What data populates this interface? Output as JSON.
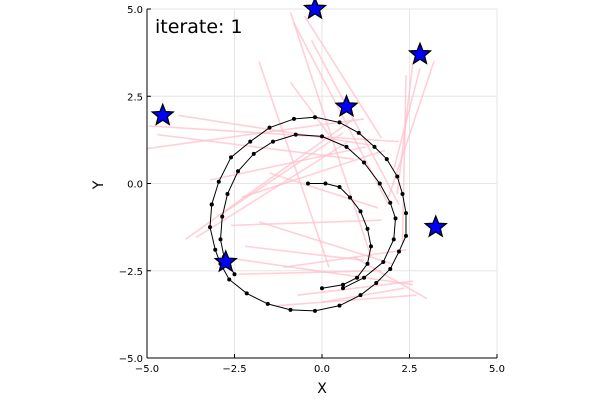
{
  "chart_data": {
    "type": "scatter",
    "annotation": "iterate: 1",
    "xlabel": "X",
    "ylabel": "Y",
    "xlim": [
      -5,
      5
    ],
    "ylim": [
      -5,
      5
    ],
    "x_ticks": [
      -5.0,
      -2.5,
      0.0,
      2.5,
      5.0
    ],
    "y_ticks": [
      -5.0,
      -2.5,
      0.0,
      2.5,
      5.0
    ],
    "x_tick_labels": [
      "−5.0",
      "−2.5",
      "0.0",
      "2.5",
      "5.0"
    ],
    "y_tick_labels": [
      "−5.0",
      "−2.5",
      "0.0",
      "2.5",
      "5.0"
    ],
    "grid": true,
    "legend": "none",
    "colors": {
      "path": "#000000",
      "beams": "#ffc0cb",
      "stars": "#0000ff",
      "grid": "#e6e6e6"
    },
    "path": [
      [
        -0.4,
        0.0
      ],
      [
        0.1,
        0.0
      ],
      [
        0.5,
        -0.1
      ],
      [
        0.8,
        -0.4
      ],
      [
        1.1,
        -0.8
      ],
      [
        1.3,
        -1.3
      ],
      [
        1.4,
        -1.8
      ],
      [
        1.3,
        -2.3
      ],
      [
        1.0,
        -2.7
      ],
      [
        0.6,
        -2.9
      ],
      [
        0.0,
        -3.0
      ]
    ],
    "path_outer": [
      [
        -3.15,
        -0.6
      ],
      [
        -3.2,
        -1.25
      ],
      [
        -3.05,
        -1.9
      ],
      [
        -2.9,
        -2.3
      ],
      [
        -2.65,
        -2.75
      ],
      [
        -2.15,
        -3.15
      ],
      [
        -1.55,
        -3.45
      ],
      [
        -0.9,
        -3.62
      ],
      [
        -0.2,
        -3.65
      ],
      [
        0.5,
        -3.5
      ],
      [
        1.1,
        -3.2
      ],
      [
        1.55,
        -2.85
      ],
      [
        1.95,
        -2.45
      ],
      [
        2.2,
        -1.95
      ],
      [
        2.4,
        -1.5
      ],
      [
        2.4,
        -0.85
      ],
      [
        2.3,
        -0.3
      ],
      [
        2.15,
        0.2
      ],
      [
        1.85,
        0.7
      ],
      [
        1.5,
        1.05
      ],
      [
        1.05,
        1.45
      ],
      [
        0.5,
        1.75
      ],
      [
        -0.2,
        1.9
      ],
      [
        -0.8,
        1.85
      ],
      [
        -1.5,
        1.6
      ],
      [
        -2.05,
        1.2
      ],
      [
        -2.6,
        0.75
      ],
      [
        -2.95,
        0.05
      ],
      [
        -3.15,
        -0.6
      ]
    ],
    "path_inner": [
      [
        -2.5,
        -2.6
      ],
      [
        -2.8,
        -2.1
      ],
      [
        -2.9,
        -1.6
      ],
      [
        -2.85,
        -0.95
      ],
      [
        -2.7,
        -0.3
      ],
      [
        -2.4,
        0.35
      ],
      [
        -1.95,
        0.85
      ],
      [
        -1.4,
        1.2
      ],
      [
        -0.75,
        1.4
      ],
      [
        0.0,
        1.35
      ],
      [
        0.7,
        1.05
      ],
      [
        1.2,
        0.6
      ],
      [
        1.65,
        0.0
      ],
      [
        1.95,
        -0.55
      ],
      [
        2.1,
        -1.0
      ],
      [
        2.05,
        -1.6
      ],
      [
        1.75,
        -2.25
      ],
      [
        1.2,
        -2.7
      ],
      [
        0.6,
        -3.0
      ]
    ],
    "stars": [
      [
        -0.2,
        5.0
      ],
      [
        2.8,
        3.7
      ],
      [
        -4.55,
        1.95
      ],
      [
        0.7,
        2.2
      ],
      [
        3.25,
        -1.25
      ],
      [
        -2.75,
        -2.25
      ]
    ],
    "beams": [
      [
        [
          -1.8,
          3.5
        ],
        [
          0.2,
          -2.4
        ]
      ],
      [
        [
          -0.9,
          4.9
        ],
        [
          1.4,
          -2.1
        ]
      ],
      [
        [
          -0.8,
          4.6
        ],
        [
          1.9,
          -0.6
        ]
      ],
      [
        [
          -0.5,
          4.8
        ],
        [
          1.7,
          1.3
        ]
      ],
      [
        [
          -0.3,
          4.1
        ],
        [
          2.2,
          -0.6
        ]
      ],
      [
        [
          2.4,
          3.1
        ],
        [
          2.3,
          -1.7
        ]
      ],
      [
        [
          2.6,
          3.5
        ],
        [
          2.15,
          -0.3
        ]
      ],
      [
        [
          2.8,
          3.3
        ],
        [
          2.05,
          0.4
        ]
      ],
      [
        [
          3.2,
          3.5
        ],
        [
          1.9,
          -0.4
        ]
      ],
      [
        [
          -4.95,
          1.65
        ],
        [
          2.2,
          1.2
        ]
      ],
      [
        [
          -5.0,
          1.0
        ],
        [
          1.2,
          1.85
        ]
      ],
      [
        [
          -4.7,
          1.4
        ],
        [
          0.9,
          0.7
        ]
      ],
      [
        [
          -4.1,
          1.95
        ],
        [
          1.4,
          1.1
        ]
      ],
      [
        [
          -3.9,
          -1.6
        ],
        [
          0.9,
          1.85
        ]
      ],
      [
        [
          -3.6,
          -1.55
        ],
        [
          0.75,
          1.2
        ]
      ],
      [
        [
          -2.9,
          -0.9
        ],
        [
          0.6,
          1.45
        ]
      ],
      [
        [
          -3.2,
          0.1
        ],
        [
          1.25,
          1.05
        ]
      ],
      [
        [
          -2.3,
          -0.4
        ],
        [
          1.8,
          0.95
        ]
      ],
      [
        [
          -1.5,
          0.3
        ],
        [
          1.6,
          -0.7
        ]
      ],
      [
        [
          -2.6,
          -1.2
        ],
        [
          1.7,
          -1.05
        ]
      ],
      [
        [
          -2.9,
          -2.1
        ],
        [
          2.6,
          -2.9
        ]
      ],
      [
        [
          -2.4,
          -2.6
        ],
        [
          1.7,
          -2.5
        ]
      ],
      [
        [
          -1.3,
          -3.5
        ],
        [
          2.7,
          -3.2
        ]
      ],
      [
        [
          -0.7,
          -3.2
        ],
        [
          2.6,
          -2.8
        ]
      ],
      [
        [
          0.0,
          -3.4
        ],
        [
          2.35,
          -3.0
        ]
      ],
      [
        [
          0.9,
          -2.1
        ],
        [
          3.0,
          -3.3
        ]
      ],
      [
        [
          -1.1,
          -2.4
        ],
        [
          2.4,
          -1.9
        ]
      ],
      [
        [
          -1.8,
          -1.1
        ],
        [
          2.0,
          -2.3
        ]
      ],
      [
        [
          -2.2,
          -1.8
        ],
        [
          1.2,
          -2.2
        ]
      ],
      [
        [
          -0.9,
          2.9
        ],
        [
          0.2,
          1.4
        ]
      ]
    ]
  }
}
